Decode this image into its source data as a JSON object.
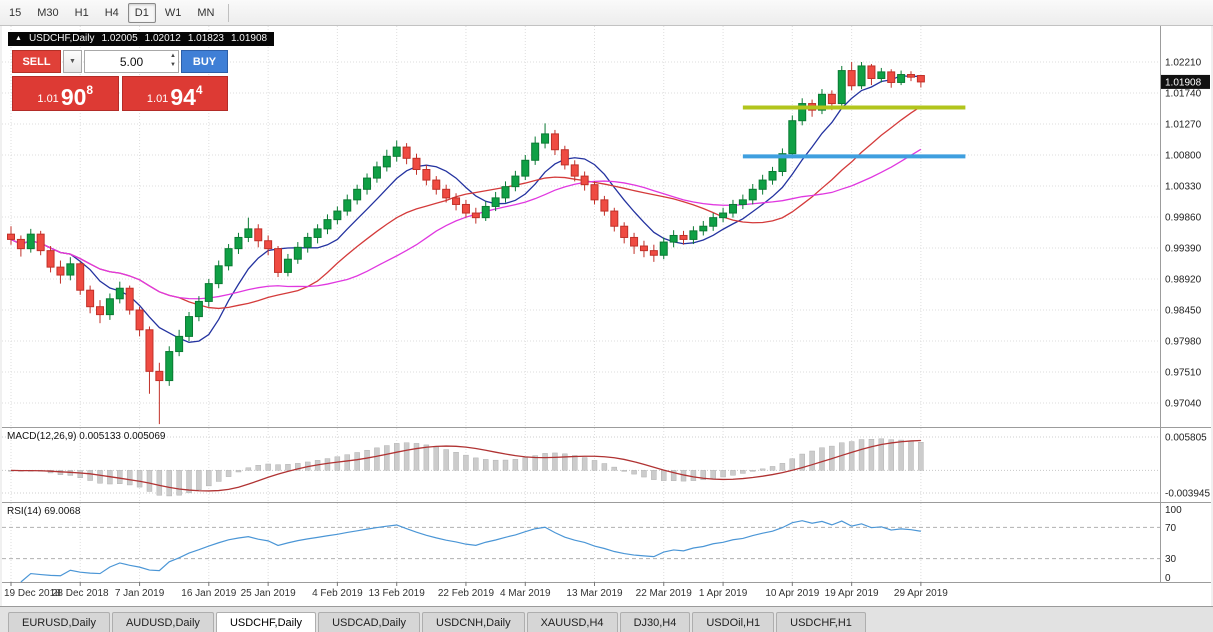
{
  "toolbar": {
    "timeframes": [
      {
        "label": "15",
        "active": false
      },
      {
        "label": "M30",
        "active": false
      },
      {
        "label": "H1",
        "active": false
      },
      {
        "label": "H4",
        "active": false
      },
      {
        "label": "D1",
        "active": true
      },
      {
        "label": "W1",
        "active": false
      },
      {
        "label": "MN",
        "active": false
      }
    ]
  },
  "chart_header": {
    "symbol": "USDCHF,Daily",
    "open": "1.02005",
    "high": "1.02012",
    "low": "1.01823",
    "close": "1.01908"
  },
  "trade_panel": {
    "sell_label": "SELL",
    "buy_label": "BUY",
    "volume": "5.00",
    "bid": {
      "prefix": "1.01",
      "big": "90",
      "sup": "8"
    },
    "ask": {
      "prefix": "1.01",
      "big": "94",
      "sup": "4"
    }
  },
  "price_axis": {
    "ticks": [
      "1.02210",
      "1.01740",
      "1.01270",
      "1.00800",
      "1.00330",
      "0.99860",
      "0.99390",
      "0.98920",
      "0.98450",
      "0.97980",
      "0.97510",
      "0.97040"
    ],
    "current": "1.01908"
  },
  "date_axis": {
    "labels": [
      "19 Dec 2018",
      "28 Dec 2018",
      "7 Jan 2019",
      "16 Jan 2019",
      "25 Jan 2019",
      "4 Feb 2019",
      "13 Feb 2019",
      "22 Feb 2019",
      "4 Mar 2019",
      "13 Mar 2019",
      "22 Mar 2019",
      "1 Apr 2019",
      "10 Apr 2019",
      "19 Apr 2019",
      "29 Apr 2019"
    ],
    "bar_indices": [
      0,
      7,
      13,
      20,
      26,
      33,
      39,
      46,
      52,
      59,
      66,
      72,
      79,
      85,
      92
    ]
  },
  "macd_panel": {
    "label": "MACD(12,26,9) 0.005133 0.005069",
    "levels": [
      "0.005805",
      "-0.003945"
    ]
  },
  "rsi_panel": {
    "label": "RSI(14) 69.0068",
    "levels": [
      "100",
      "70",
      "30",
      "0"
    ]
  },
  "tabs": [
    {
      "label": "EURUSD,Daily",
      "active": false
    },
    {
      "label": "AUDUSD,Daily",
      "active": false
    },
    {
      "label": "USDCHF,Daily",
      "active": true
    },
    {
      "label": "USDCAD,Daily",
      "active": false
    },
    {
      "label": "USDCNH,Daily",
      "active": false
    },
    {
      "label": "XAUUSD,H4",
      "active": false
    },
    {
      "label": "DJ30,H4",
      "active": false
    },
    {
      "label": "USDOil,H1",
      "active": false
    },
    {
      "label": "USDCHF,H1",
      "active": false
    }
  ],
  "chart_data": {
    "type": "candlestick",
    "symbol": "USDCHF",
    "timeframe": "Daily",
    "title": "USDCHF,Daily",
    "ylim": [
      0.9655,
      1.0267
    ],
    "candles": [
      [
        0.996,
        0.9972,
        0.9944,
        0.9952
      ],
      [
        0.9952,
        0.9958,
        0.9926,
        0.9938
      ],
      [
        0.9938,
        0.9968,
        0.9932,
        0.996
      ],
      [
        0.996,
        0.9965,
        0.9928,
        0.9935
      ],
      [
        0.9935,
        0.9942,
        0.9902,
        0.991
      ],
      [
        0.991,
        0.992,
        0.9885,
        0.9898
      ],
      [
        0.9898,
        0.9925,
        0.989,
        0.9915
      ],
      [
        0.9915,
        0.9918,
        0.9868,
        0.9875
      ],
      [
        0.9875,
        0.9882,
        0.984,
        0.985
      ],
      [
        0.985,
        0.986,
        0.9825,
        0.9838
      ],
      [
        0.9838,
        0.987,
        0.983,
        0.9862
      ],
      [
        0.9862,
        0.9888,
        0.9855,
        0.9878
      ],
      [
        0.9878,
        0.9882,
        0.9838,
        0.9845
      ],
      [
        0.9845,
        0.985,
        0.9805,
        0.9815
      ],
      [
        0.9815,
        0.982,
        0.9718,
        0.9752
      ],
      [
        0.9752,
        0.9765,
        0.9672,
        0.9738
      ],
      [
        0.9738,
        0.979,
        0.973,
        0.9782
      ],
      [
        0.9782,
        0.9815,
        0.9775,
        0.9805
      ],
      [
        0.9805,
        0.9842,
        0.9798,
        0.9835
      ],
      [
        0.9835,
        0.9866,
        0.9828,
        0.9858
      ],
      [
        0.9858,
        0.9892,
        0.985,
        0.9885
      ],
      [
        0.9885,
        0.992,
        0.9878,
        0.9912
      ],
      [
        0.9912,
        0.9945,
        0.9905,
        0.9938
      ],
      [
        0.9938,
        0.9962,
        0.993,
        0.9955
      ],
      [
        0.9955,
        0.9985,
        0.9948,
        0.9968
      ],
      [
        0.9968,
        0.9975,
        0.994,
        0.995
      ],
      [
        0.995,
        0.9958,
        0.9928,
        0.9938
      ],
      [
        0.9938,
        0.9942,
        0.9895,
        0.9902
      ],
      [
        0.9902,
        0.993,
        0.9896,
        0.9922
      ],
      [
        0.9922,
        0.9948,
        0.9915,
        0.994
      ],
      [
        0.994,
        0.9962,
        0.9932,
        0.9955
      ],
      [
        0.9955,
        0.9975,
        0.9946,
        0.9968
      ],
      [
        0.9968,
        0.999,
        0.996,
        0.9982
      ],
      [
        0.9982,
        1.0002,
        0.9975,
        0.9995
      ],
      [
        0.9995,
        1.002,
        0.9988,
        1.0012
      ],
      [
        1.0012,
        1.0035,
        1.0005,
        1.0028
      ],
      [
        1.0028,
        1.0052,
        1.002,
        1.0045
      ],
      [
        1.0045,
        1.007,
        1.0038,
        1.0062
      ],
      [
        1.0062,
        1.0088,
        1.0055,
        1.0078
      ],
      [
        1.0078,
        1.0102,
        1.007,
        1.0092
      ],
      [
        1.0092,
        1.0098,
        1.0066,
        1.0075
      ],
      [
        1.0075,
        1.0082,
        1.005,
        1.0058
      ],
      [
        1.0058,
        1.0065,
        1.0034,
        1.0042
      ],
      [
        1.0042,
        1.0048,
        1.002,
        1.0028
      ],
      [
        1.0028,
        1.0035,
        1.0008,
        1.0015
      ],
      [
        1.0015,
        1.0022,
        0.9996,
        1.0005
      ],
      [
        1.0005,
        1.0012,
        0.9985,
        0.9992
      ],
      [
        0.9992,
        1.0,
        0.9976,
        0.9985
      ],
      [
        0.9985,
        1.001,
        0.998,
        1.0002
      ],
      [
        1.0002,
        1.0024,
        0.9995,
        1.0015
      ],
      [
        1.0015,
        1.004,
        1.0008,
        1.0032
      ],
      [
        1.0032,
        1.0056,
        1.0025,
        1.0048
      ],
      [
        1.0048,
        1.008,
        1.0042,
        1.0072
      ],
      [
        1.0072,
        1.0108,
        1.0065,
        1.0098
      ],
      [
        1.0098,
        1.0128,
        1.009,
        1.0112
      ],
      [
        1.0112,
        1.0118,
        1.008,
        1.0088
      ],
      [
        1.0088,
        1.0094,
        1.0058,
        1.0065
      ],
      [
        1.0065,
        1.0072,
        1.004,
        1.0048
      ],
      [
        1.0048,
        1.0055,
        1.0026,
        1.0035
      ],
      [
        1.0035,
        1.004,
        1.0005,
        1.0012
      ],
      [
        1.0012,
        1.0018,
        0.9988,
        0.9995
      ],
      [
        0.9995,
        1.0,
        0.9964,
        0.9972
      ],
      [
        0.9972,
        0.9978,
        0.9946,
        0.9955
      ],
      [
        0.9955,
        0.9962,
        0.993,
        0.9942
      ],
      [
        0.9942,
        0.995,
        0.9925,
        0.9935
      ],
      [
        0.9935,
        0.9944,
        0.9918,
        0.9928
      ],
      [
        0.9928,
        0.9955,
        0.9922,
        0.9948
      ],
      [
        0.9948,
        0.9966,
        0.994,
        0.9958
      ],
      [
        0.9958,
        0.9965,
        0.9944,
        0.9952
      ],
      [
        0.9952,
        0.9972,
        0.9945,
        0.9965
      ],
      [
        0.9965,
        0.998,
        0.9958,
        0.9972
      ],
      [
        0.9972,
        0.9992,
        0.9965,
        0.9985
      ],
      [
        0.9985,
        1.0,
        0.9978,
        0.9992
      ],
      [
        0.9992,
        1.0012,
        0.9985,
        1.0005
      ],
      [
        1.0005,
        1.002,
        0.9998,
        1.0012
      ],
      [
        1.0012,
        1.0036,
        1.0005,
        1.0028
      ],
      [
        1.0028,
        1.005,
        1.002,
        1.0042
      ],
      [
        1.0042,
        1.0062,
        1.0035,
        1.0055
      ],
      [
        1.0055,
        1.009,
        1.0048,
        1.0082
      ],
      [
        1.0082,
        1.014,
        1.0075,
        1.0132
      ],
      [
        1.0132,
        1.0166,
        1.0125,
        1.0158
      ],
      [
        1.0158,
        1.0164,
        1.0138,
        1.0148
      ],
      [
        1.0148,
        1.018,
        1.0142,
        1.0172
      ],
      [
        1.0172,
        1.0178,
        1.0148,
        1.0158
      ],
      [
        1.0158,
        1.0215,
        1.015,
        1.0208
      ],
      [
        1.0208,
        1.0221,
        1.0178,
        1.0185
      ],
      [
        1.0185,
        1.0221,
        1.018,
        1.0215
      ],
      [
        1.0215,
        1.0218,
        1.0186,
        1.0196
      ],
      [
        1.0196,
        1.0212,
        1.019,
        1.0206
      ],
      [
        1.0206,
        1.021,
        1.0182,
        1.019
      ],
      [
        1.019,
        1.0208,
        1.0186,
        1.0202
      ],
      [
        1.0202,
        1.0207,
        1.0192,
        1.0198
      ],
      [
        1.02005,
        1.02012,
        1.01823,
        1.01908
      ]
    ],
    "overlays": {
      "moving_averages": [
        {
          "period": 7,
          "color": "#2433a0"
        },
        {
          "period": 18,
          "color": "#d43b3b"
        },
        {
          "period": 28,
          "color": "#e038e0"
        }
      ],
      "hlines": [
        {
          "price": 1.0152,
          "from_bar": 74,
          "to_bar": 96.5,
          "color": "#b2c51c",
          "width": 4
        },
        {
          "price": 1.0078,
          "from_bar": 74,
          "to_bar": 96.5,
          "color": "#3f9fdf",
          "width": 4
        }
      ]
    },
    "indicators": {
      "macd": {
        "fast": 12,
        "slow": 26,
        "signal": 9,
        "hist_color": "#cccccc",
        "signal_color": "#b03333"
      },
      "rsi": {
        "period": 14,
        "color": "#4b96d6",
        "levels": [
          70,
          30
        ]
      }
    },
    "colors": {
      "up_fill": "#0fa045",
      "up_stroke": "#0a7a33",
      "down_fill": "#ef4b42",
      "down_stroke": "#c03028",
      "grid": "#dedede",
      "axis_line": "#9c9c9c",
      "badge_bg": "#111111"
    }
  }
}
